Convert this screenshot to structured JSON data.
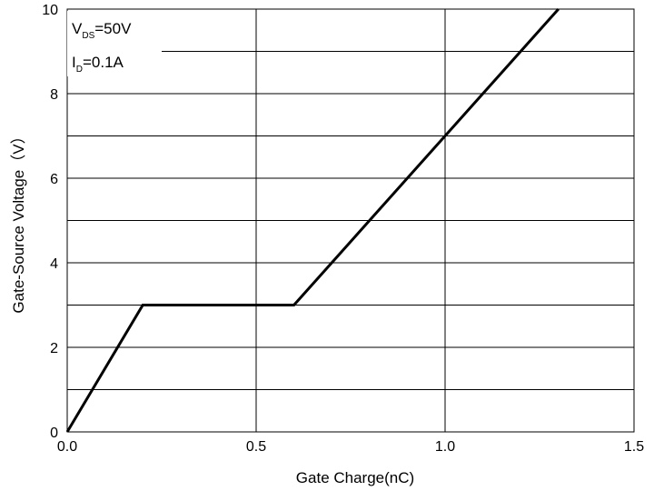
{
  "chart_data": {
    "type": "line",
    "title": "",
    "xlabel": "Gate Charge(nC)",
    "ylabel": "Gate-Source Voltage（V）",
    "xlim": [
      0,
      1.5
    ],
    "ylim": [
      0,
      10
    ],
    "x_ticks": [
      0,
      0.5,
      1.0,
      1.5
    ],
    "x_tick_labels": [
      "0.0",
      "0.5",
      "1.0",
      "1.5"
    ],
    "y_ticks": [
      0,
      2,
      4,
      6,
      8,
      10
    ],
    "y_tick_labels": [
      "0",
      "2",
      "4",
      "6",
      "8",
      "10"
    ],
    "y_gridlines": [
      1,
      2,
      3,
      4,
      5,
      6,
      7,
      8,
      9,
      10
    ],
    "x_gridlines": [
      0.5,
      1.0,
      1.5
    ],
    "grid": true,
    "line_color": "#000000",
    "series": [
      {
        "x": [
          0.0,
          0.2,
          0.6,
          1.3
        ],
        "y": [
          0,
          3,
          3,
          10
        ]
      }
    ],
    "annotations": [
      {
        "id": "vds",
        "main": "V",
        "sub": "DS",
        "rest": "=50V"
      },
      {
        "id": "id",
        "main": "I",
        "sub": "D",
        "rest": "=0.1A"
      }
    ]
  }
}
